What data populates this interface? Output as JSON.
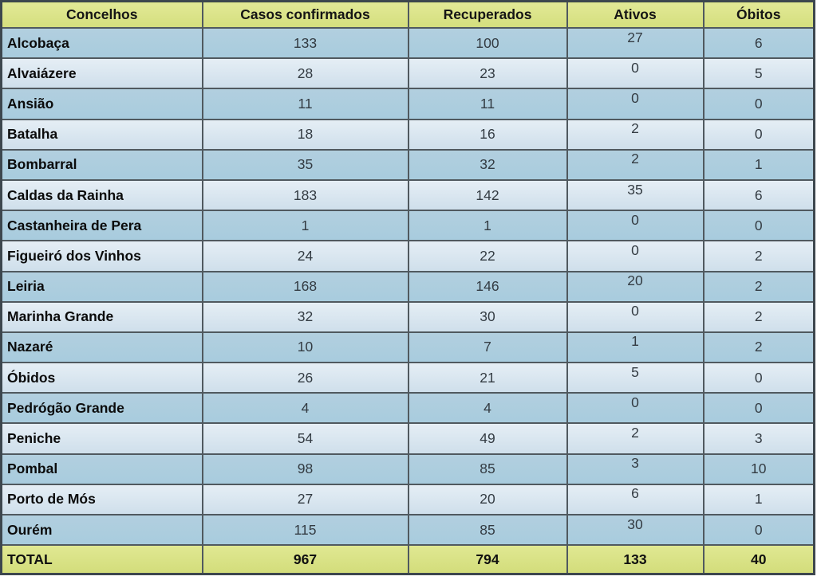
{
  "chart_data": {
    "type": "table",
    "columns": [
      "Concelhos",
      "Casos confirmados",
      "Recuperados",
      "Ativos",
      "Óbitos"
    ],
    "rows": [
      [
        "Alcobaça",
        133,
        100,
        27,
        6
      ],
      [
        "Alvaiázere",
        28,
        23,
        0,
        5
      ],
      [
        "Ansião",
        11,
        11,
        0,
        0
      ],
      [
        "Batalha",
        18,
        16,
        2,
        0
      ],
      [
        "Bombarral",
        35,
        32,
        2,
        1
      ],
      [
        "Caldas da Rainha",
        183,
        142,
        35,
        6
      ],
      [
        "Castanheira de Pera",
        1,
        1,
        0,
        0
      ],
      [
        "Figueiró dos Vinhos",
        24,
        22,
        0,
        2
      ],
      [
        "Leiria",
        168,
        146,
        20,
        2
      ],
      [
        "Marinha Grande",
        32,
        30,
        0,
        2
      ],
      [
        "Nazaré",
        10,
        7,
        1,
        2
      ],
      [
        "Óbidos",
        26,
        21,
        5,
        0
      ],
      [
        "Pedrógão Grande",
        4,
        4,
        0,
        0
      ],
      [
        "Peniche",
        54,
        49,
        2,
        3
      ],
      [
        "Pombal",
        98,
        85,
        3,
        10
      ],
      [
        "Porto de Mós",
        27,
        20,
        6,
        1
      ],
      [
        "Ourém",
        115,
        85,
        30,
        0
      ]
    ],
    "total_row": [
      "TOTAL",
      967,
      794,
      133,
      40
    ],
    "layout": {
      "first_row_shade": "dark",
      "row_shading": "alternating"
    }
  },
  "colors": {
    "header_bg": "#dce58b",
    "total_bg": "#d9e287",
    "row_dark_bg": "#adcdde",
    "row_light_bg": "#dbe8f1",
    "grid_line": "#50595f",
    "outer_border": "#3d474e",
    "name_text": "#0b0b0b",
    "number_text": "#333b42"
  }
}
